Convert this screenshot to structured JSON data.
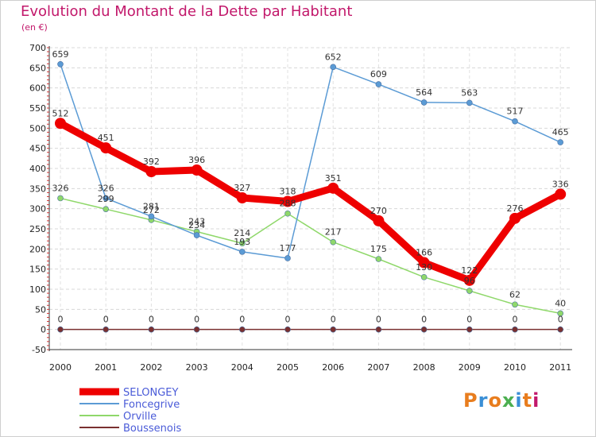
{
  "header": {
    "title": "Evolution du Montant de la Dette par Habitant",
    "subtitle": "(en €)"
  },
  "logo": {
    "text": "Proxiti",
    "colors": [
      "#e87d1e",
      "#3a8fd6",
      "#e87d1e",
      "#4caf50",
      "#3a8fd6",
      "#e87d1e",
      "#c2186b"
    ]
  },
  "chart_data": {
    "type": "line",
    "title": "Evolution du Montant de la Dette par Habitant",
    "subtitle": "(en €)",
    "xlabel": "",
    "ylabel": "",
    "x": [
      "2000",
      "2001",
      "2002",
      "2003",
      "2004",
      "2005",
      "2006",
      "2007",
      "2008",
      "2009",
      "2010",
      "2011"
    ],
    "ylim": [
      -50,
      700
    ],
    "yticks": [
      -50,
      0,
      50,
      100,
      150,
      200,
      250,
      300,
      350,
      400,
      450,
      500,
      550,
      600,
      650,
      700
    ],
    "grid": true,
    "legend_position": "bottom-left",
    "series": [
      {
        "name": "SELONGEY",
        "color": "#ee0000",
        "values": [
          512,
          451,
          392,
          396,
          327,
          318,
          351,
          270,
          166,
          122,
          276,
          336
        ]
      },
      {
        "name": "Foncegrive",
        "color": "#5b9bd5",
        "values": [
          659,
          326,
          281,
          234,
          193,
          177,
          652,
          609,
          564,
          563,
          517,
          465
        ]
      },
      {
        "name": "Orville",
        "color": "#8fd86a",
        "values": [
          326,
          299,
          272,
          243,
          214,
          288,
          217,
          175,
          130,
          96,
          62,
          40
        ]
      },
      {
        "name": "Boussenois",
        "color": "#7a3030",
        "values": [
          0,
          0,
          0,
          0,
          0,
          0,
          0,
          0,
          0,
          0,
          0,
          0
        ]
      }
    ]
  }
}
